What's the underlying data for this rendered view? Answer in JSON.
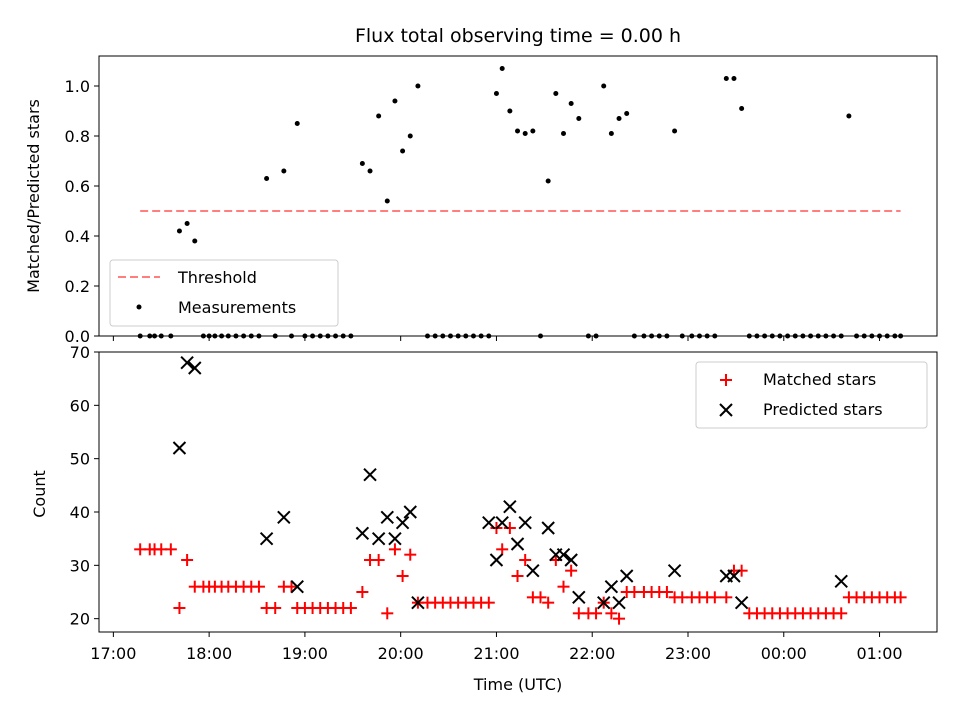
{
  "chart_data": [
    {
      "type": "scatter",
      "title": "Flux total observing time = 0.00 h",
      "xlabel": "",
      "ylabel": "Matched/Predicted stars",
      "ylim": [
        0,
        1.12
      ],
      "yticks": [
        "0.0",
        "0.2",
        "0.4",
        "0.6",
        "0.8",
        "1.0"
      ],
      "ytick_values": [
        0,
        0.2,
        0.4,
        0.6,
        0.8,
        1.0
      ],
      "legend_position": "lower-left",
      "threshold": {
        "name": "Threshold",
        "value": 0.5,
        "x_start": 17.28,
        "x_end": 25.22,
        "color": "#ff7f7f"
      },
      "series": [
        {
          "name": "Measurements",
          "color": "#000000",
          "x": [
            17.28,
            17.38,
            17.43,
            17.5,
            17.6,
            17.69,
            17.77,
            17.85,
            17.94,
            18.0,
            18.06,
            18.13,
            18.2,
            18.28,
            18.36,
            18.44,
            18.52,
            18.6,
            18.69,
            18.78,
            18.86,
            18.92,
            19.0,
            19.08,
            19.16,
            19.24,
            19.32,
            19.4,
            19.48,
            19.6,
            19.68,
            19.77,
            19.86,
            19.94,
            20.02,
            20.1,
            20.18,
            20.28,
            20.36,
            20.44,
            20.52,
            20.6,
            20.68,
            20.76,
            20.84,
            20.92,
            21.0,
            21.06,
            21.14,
            21.22,
            21.3,
            21.38,
            21.46,
            21.54,
            21.62,
            21.7,
            21.78,
            21.86,
            21.96,
            22.04,
            22.12,
            22.2,
            22.28,
            22.36,
            22.44,
            22.54,
            22.62,
            22.7,
            22.78,
            22.86,
            22.94,
            23.04,
            23.12,
            23.2,
            23.28,
            23.4,
            23.48,
            23.56,
            23.64,
            23.72,
            23.8,
            23.88,
            23.96,
            24.04,
            24.12,
            24.2,
            24.28,
            24.36,
            24.44,
            24.52,
            24.6,
            24.68,
            24.76,
            24.84,
            24.92,
            25.0,
            25.08,
            25.16,
            25.22
          ],
          "y": [
            0.0,
            0.0,
            0.0,
            0.0,
            0.0,
            0.42,
            0.45,
            0.38,
            0.0,
            0.0,
            0.0,
            0.0,
            0.0,
            0.0,
            0.0,
            0.0,
            0.0,
            0.63,
            0.0,
            0.66,
            0.0,
            0.85,
            0.0,
            0.0,
            0.0,
            0.0,
            0.0,
            0.0,
            0.0,
            0.69,
            0.66,
            0.88,
            0.54,
            0.94,
            0.74,
            0.8,
            1.0,
            0.0,
            0.0,
            0.0,
            0.0,
            0.0,
            0.0,
            0.0,
            0.0,
            0.0,
            0.97,
            1.07,
            0.9,
            0.82,
            0.81,
            0.82,
            0.0,
            0.62,
            0.97,
            0.81,
            0.93,
            0.87,
            0.0,
            0.0,
            1.0,
            0.81,
            0.87,
            0.89,
            0.0,
            0.0,
            0.0,
            0.0,
            0.0,
            0.82,
            0.0,
            0.0,
            0.0,
            0.0,
            0.0,
            1.03,
            1.03,
            0.91,
            0.0,
            0.0,
            0.0,
            0.0,
            0.0,
            0.0,
            0.0,
            0.0,
            0.0,
            0.0,
            0.0,
            0.0,
            0.0,
            0.88,
            0.0,
            0.0,
            0.0,
            0.0,
            0.0,
            0.0,
            0.0
          ]
        }
      ]
    },
    {
      "type": "scatter",
      "title": "",
      "xlabel": "Time (UTC)",
      "ylabel": "Count",
      "xlim": [
        16.85,
        25.6
      ],
      "ylim": [
        17.5,
        70
      ],
      "yticks": [
        "20",
        "30",
        "40",
        "50",
        "60",
        "70"
      ],
      "ytick_values": [
        20,
        30,
        40,
        50,
        60,
        70
      ],
      "xticks": [
        "17:00",
        "18:00",
        "19:00",
        "20:00",
        "21:00",
        "22:00",
        "23:00",
        "00:00",
        "01:00"
      ],
      "xtick_values": [
        17,
        18,
        19,
        20,
        21,
        22,
        23,
        24,
        25
      ],
      "legend_position": "upper-right",
      "series": [
        {
          "name": "Matched stars",
          "marker": "plus",
          "color": "#ff0000",
          "x": [
            17.28,
            17.38,
            17.43,
            17.5,
            17.6,
            17.69,
            17.77,
            17.85,
            17.94,
            18.0,
            18.06,
            18.13,
            18.2,
            18.28,
            18.36,
            18.44,
            18.52,
            18.6,
            18.69,
            18.78,
            18.86,
            18.92,
            19.0,
            19.08,
            19.16,
            19.24,
            19.32,
            19.4,
            19.48,
            19.6,
            19.68,
            19.77,
            19.86,
            19.94,
            20.02,
            20.1,
            20.18,
            20.28,
            20.36,
            20.44,
            20.52,
            20.6,
            20.68,
            20.76,
            20.84,
            20.92,
            21.0,
            21.06,
            21.14,
            21.22,
            21.3,
            21.38,
            21.46,
            21.54,
            21.62,
            21.7,
            21.78,
            21.86,
            21.96,
            22.04,
            22.12,
            22.2,
            22.28,
            22.36,
            22.44,
            22.54,
            22.62,
            22.7,
            22.78,
            22.86,
            22.94,
            23.04,
            23.12,
            23.2,
            23.28,
            23.4,
            23.48,
            23.56,
            23.64,
            23.72,
            23.8,
            23.88,
            23.96,
            24.04,
            24.12,
            24.2,
            24.28,
            24.36,
            24.44,
            24.52,
            24.6,
            24.68,
            24.76,
            24.84,
            24.92,
            25.0,
            25.08,
            25.16,
            25.22
          ],
          "y": [
            33,
            33,
            33,
            33,
            33,
            22,
            31,
            26,
            26,
            26,
            26,
            26,
            26,
            26,
            26,
            26,
            26,
            22,
            22,
            26,
            26,
            22,
            22,
            22,
            22,
            22,
            22,
            22,
            22,
            25,
            31,
            31,
            21,
            33,
            28,
            32,
            23,
            23,
            23,
            23,
            23,
            23,
            23,
            23,
            23,
            23,
            37,
            33,
            37,
            28,
            31,
            24,
            24,
            23,
            31,
            26,
            29,
            21,
            21,
            21,
            23,
            21,
            20,
            25,
            25,
            25,
            25,
            25,
            25,
            24,
            24,
            24,
            24,
            24,
            24,
            24,
            29,
            29,
            21,
            21,
            21,
            21,
            21,
            21,
            21,
            21,
            21,
            21,
            21,
            21,
            21,
            24,
            24,
            24,
            24,
            24,
            24,
            24,
            24
          ]
        },
        {
          "name": "Predicted stars",
          "marker": "x",
          "color": "#000000",
          "x": [
            17.69,
            17.77,
            17.85,
            18.6,
            18.78,
            18.92,
            19.6,
            19.68,
            19.77,
            19.86,
            19.94,
            20.02,
            20.1,
            20.18,
            20.92,
            21.0,
            21.06,
            21.14,
            21.22,
            21.3,
            21.38,
            21.54,
            21.62,
            21.7,
            21.78,
            21.86,
            22.12,
            22.2,
            22.28,
            22.36,
            22.86,
            23.4,
            23.48,
            23.56,
            24.6
          ],
          "y": [
            52,
            68,
            67,
            35,
            39,
            26,
            36,
            47,
            35,
            39,
            35,
            38,
            40,
            23,
            38,
            31,
            38,
            41,
            34,
            38,
            29,
            37,
            32,
            32,
            31,
            24,
            23,
            26,
            23,
            28,
            29,
            28,
            28,
            23,
            27
          ]
        }
      ]
    }
  ]
}
